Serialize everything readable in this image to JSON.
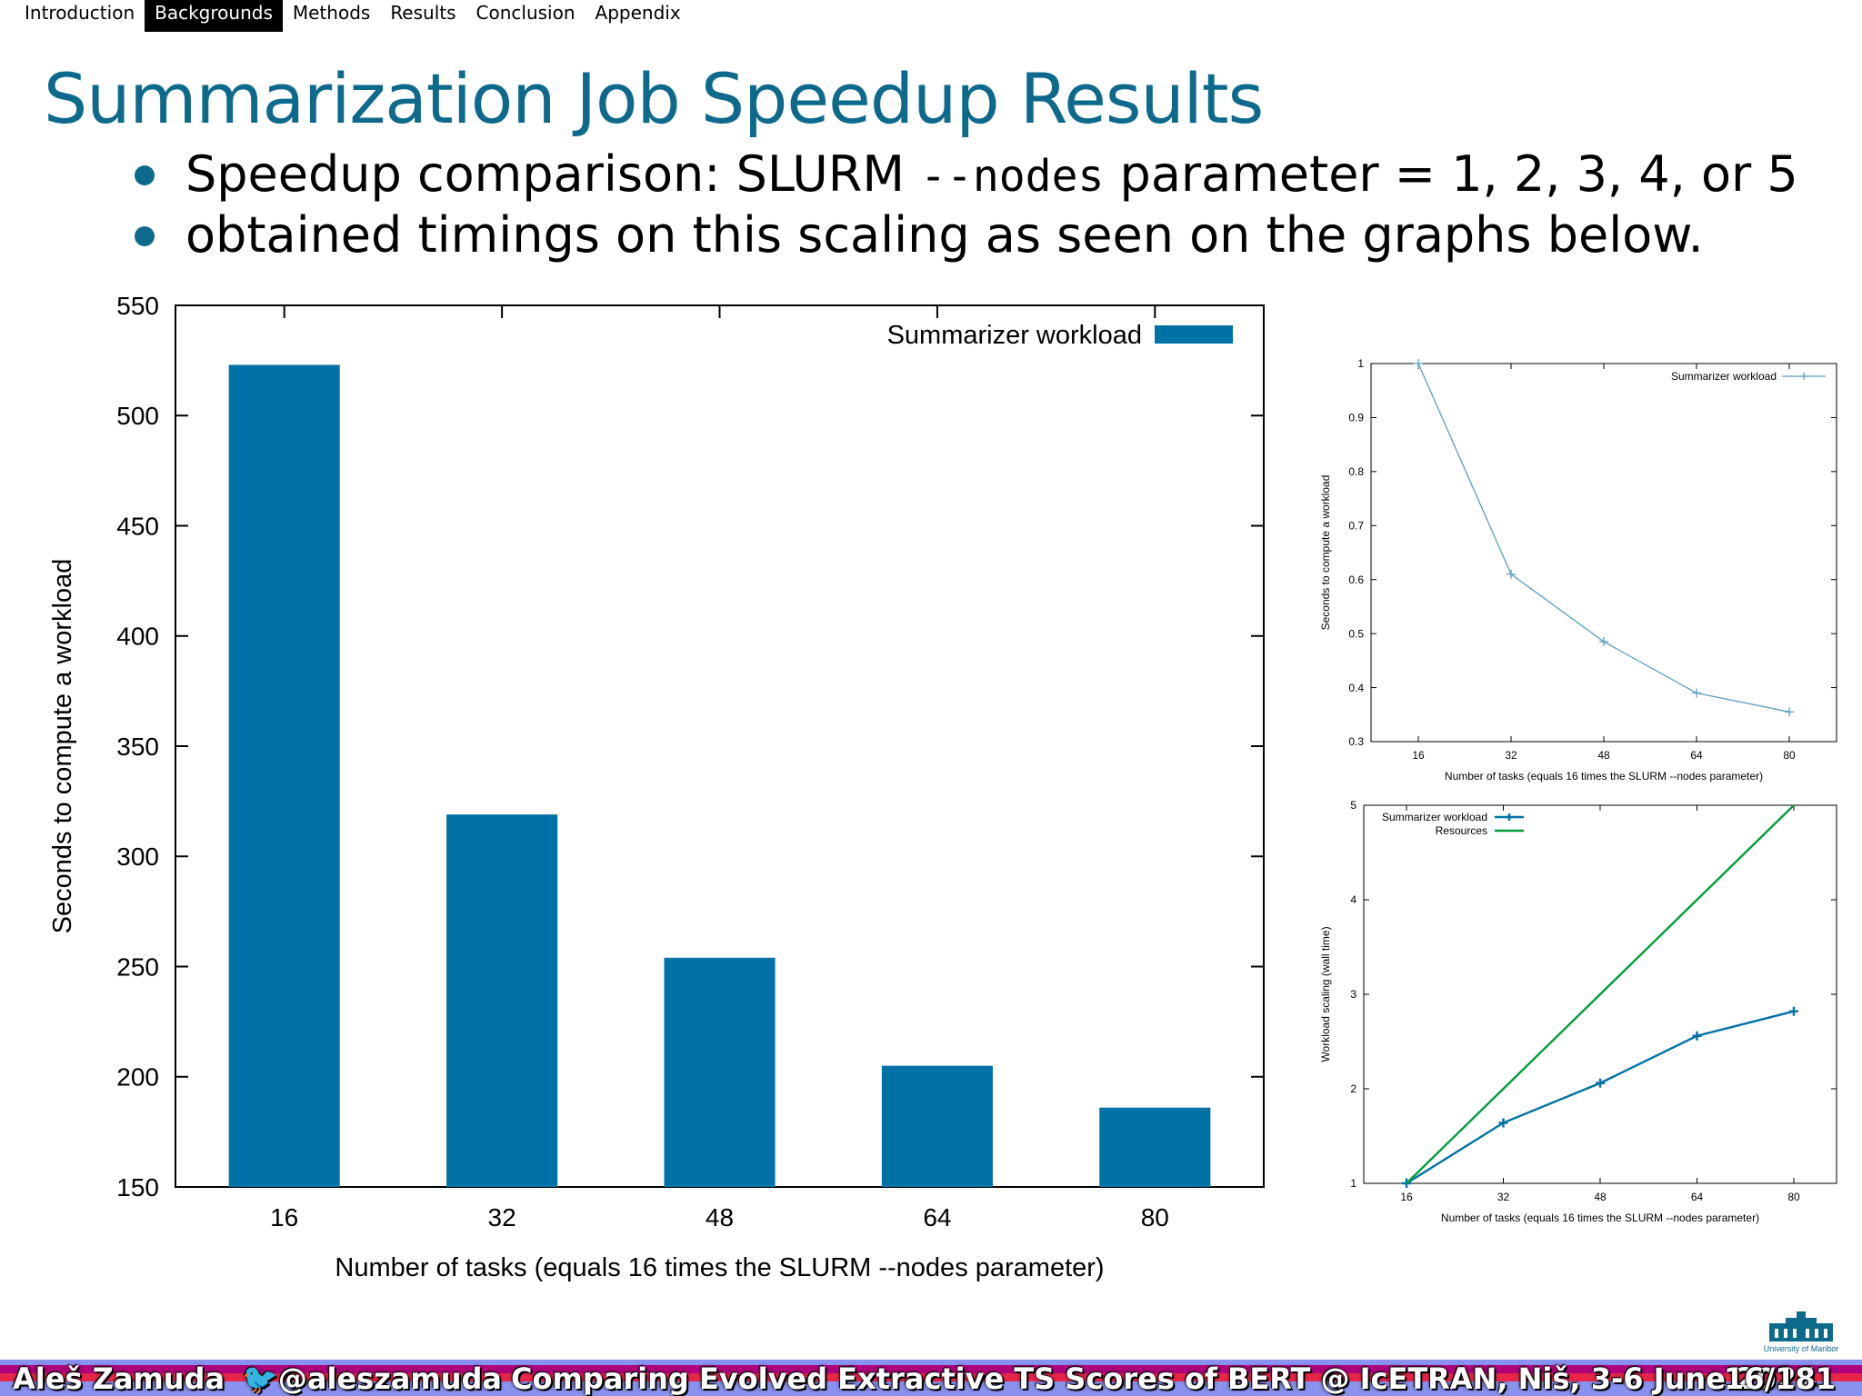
{
  "nav": {
    "items": [
      "Introduction",
      "Backgrounds",
      "Methods",
      "Results",
      "Conclusion",
      "Appendix"
    ],
    "active_index": 1
  },
  "slide": {
    "title": "Summarization Job Speedup Results",
    "bullets": [
      {
        "before": "Speedup comparison: SLURM ",
        "code": "--nodes",
        "after": " parameter = 1, 2, 3, 4, or 5"
      },
      {
        "before": "obtained timings on this scaling as seen on the graphs below.",
        "code": "",
        "after": ""
      }
    ]
  },
  "chart_data": [
    {
      "type": "bar",
      "categories": [
        "16",
        "32",
        "48",
        "64",
        "80"
      ],
      "series": [
        {
          "name": "Summarizer workload",
          "values": [
            523,
            319,
            254,
            205,
            186
          ]
        }
      ],
      "xlabel": "Number of tasks (equals 16 times the SLURM --nodes parameter)",
      "ylabel": "Seconds to compute a workload",
      "ylim": [
        150,
        550
      ],
      "yticks": [
        150,
        200,
        250,
        300,
        350,
        400,
        450,
        500,
        550
      ],
      "legend": "top-right",
      "color": "#0072a6"
    },
    {
      "type": "line",
      "x": [
        16,
        32,
        48,
        64,
        80
      ],
      "series": [
        {
          "name": "Summarizer workload",
          "values": [
            1.0,
            0.61,
            0.485,
            0.39,
            0.355
          ]
        }
      ],
      "xlabel": "Number of tasks (equals 16 times the SLURM --nodes parameter)",
      "ylabel": "Seconds to compute a workload",
      "ylim": [
        0.3,
        1
      ],
      "yticks": [
        0.3,
        0.4,
        0.5,
        0.6,
        0.7,
        0.8,
        0.9,
        1
      ],
      "legend": "top-right",
      "color": "#5a9fc4"
    },
    {
      "type": "line",
      "x": [
        16,
        32,
        48,
        64,
        80
      ],
      "series": [
        {
          "name": "Summarizer workload",
          "values": [
            1.0,
            1.64,
            2.06,
            2.56,
            2.82
          ],
          "color": "#0072a6"
        },
        {
          "name": "Resources",
          "values": [
            1,
            2,
            3,
            4,
            5
          ],
          "color": "#009e3a"
        }
      ],
      "xlabel": "Number of tasks (equals 16 times the SLURM --nodes parameter)",
      "ylabel": "Workload scaling (wall time)",
      "ylim": [
        1,
        5
      ],
      "yticks": [
        1,
        2,
        3,
        4,
        5
      ],
      "legend": "top-left"
    }
  ],
  "footer": {
    "author": "Aleš Zamuda",
    "twitter": "@aleszamuda",
    "talk": "Comparing Evolved Extractive TS Scores of BERT @ IcETRAN, Niš, 3-6 June 2024",
    "page": "16/181",
    "logo_text": "University of Maribor"
  }
}
